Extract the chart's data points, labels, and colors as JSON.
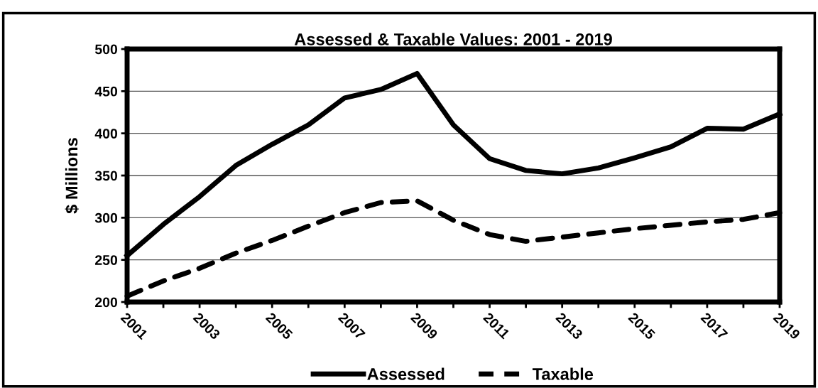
{
  "chart_data": {
    "type": "line",
    "title": "Assessed & Taxable Values: 2001 - 2019",
    "ylabel": "$ Millions",
    "x": [
      2001,
      2002,
      2003,
      2004,
      2005,
      2006,
      2007,
      2008,
      2009,
      2010,
      2011,
      2012,
      2013,
      2014,
      2015,
      2016,
      2017,
      2018,
      2019
    ],
    "series": [
      {
        "name": "Assessed",
        "color": "#000000",
        "line_style": "solid",
        "values": [
          255,
          292,
          325,
          362,
          387,
          410,
          442,
          452,
          471,
          410,
          370,
          356,
          352,
          359,
          371,
          384,
          406,
          405,
          423
        ]
      },
      {
        "name": "Taxable",
        "color": "#000000",
        "line_style": "dashed",
        "values": [
          207,
          225,
          240,
          258,
          273,
          290,
          306,
          318,
          320,
          297,
          280,
          272,
          277,
          282,
          287,
          291,
          295,
          298,
          306
        ]
      }
    ],
    "xlim": [
      2001,
      2019
    ],
    "xticks": [
      2001,
      {
        "value": 2002,
        "label": null
      },
      2003,
      {
        "value": 2004,
        "label": null
      },
      2005,
      {
        "value": 2006,
        "label": null
      },
      2007,
      {
        "value": 2008,
        "label": null
      },
      2009,
      {
        "value": 2010,
        "label": null
      },
      2011,
      {
        "value": 2012,
        "label": null
      },
      2013,
      {
        "value": 2014,
        "label": null
      },
      2015,
      {
        "value": 2016,
        "label": null
      },
      2017,
      {
        "value": 2018,
        "label": null
      },
      2019
    ],
    "ylim": [
      200,
      500
    ],
    "yticks": [
      200,
      250,
      300,
      350,
      400,
      450,
      500
    ],
    "grid": "y",
    "legend": "bottom",
    "marker": "none"
  }
}
